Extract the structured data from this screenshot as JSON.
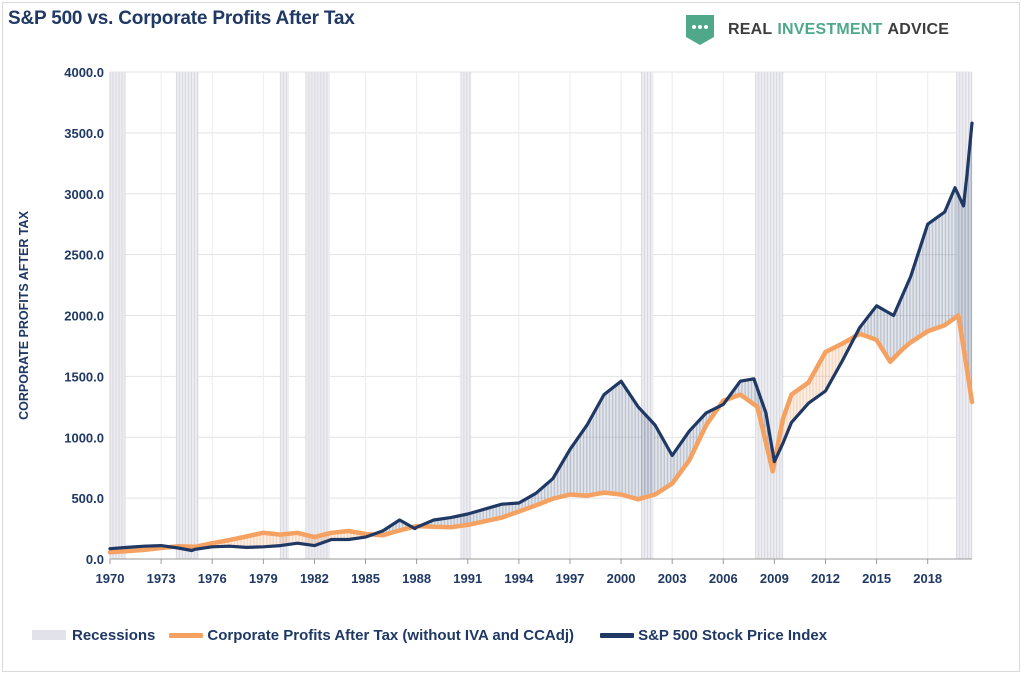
{
  "header": {
    "title": "S&P 500 vs. Corporate Profits After Tax"
  },
  "brand": {
    "word1": "REAL",
    "word2": "INVESTMENT",
    "word3": "ADVICE",
    "logo_icon": "chat-bubble-icon",
    "logo_color": "#4fa88a"
  },
  "chart_data": {
    "type": "line",
    "title": "S&P 500 vs. Corporate Profits After Tax",
    "ylabel": "CORPORATE PROFITS AFTER TAX",
    "xlabel": "",
    "ylim": [
      0,
      4000
    ],
    "xlim": [
      1970,
      2020.6
    ],
    "y_ticks": [
      "0.0",
      "500.0",
      "1000.0",
      "1500.0",
      "2000.0",
      "2500.0",
      "3000.0",
      "3500.0",
      "4000.0"
    ],
    "x_ticks": [
      "1970",
      "1973",
      "1976",
      "1979",
      "1982",
      "1985",
      "1988",
      "1991",
      "1994",
      "1997",
      "2000",
      "2003",
      "2006",
      "2009",
      "2012",
      "2015",
      "2018"
    ],
    "grid": true,
    "legend_position": "bottom",
    "recessions": [
      [
        1970.0,
        1970.9
      ],
      [
        1973.9,
        1975.2
      ],
      [
        1980.0,
        1980.5
      ],
      [
        1981.5,
        1982.9
      ],
      [
        1990.6,
        1991.2
      ],
      [
        2001.2,
        2001.9
      ],
      [
        2007.9,
        2009.5
      ],
      [
        2019.7,
        2020.6
      ]
    ],
    "fill_between": true,
    "series": [
      {
        "name": "Corporate Profits After Tax (without IVA and CCAdj)",
        "color": "#f4a161",
        "points": [
          [
            1970,
            55
          ],
          [
            1971,
            65
          ],
          [
            1972,
            75
          ],
          [
            1973,
            90
          ],
          [
            1974,
            105
          ],
          [
            1975,
            100
          ],
          [
            1976,
            130
          ],
          [
            1977,
            155
          ],
          [
            1978,
            185
          ],
          [
            1979,
            215
          ],
          [
            1980,
            200
          ],
          [
            1981,
            215
          ],
          [
            1982,
            180
          ],
          [
            1983,
            215
          ],
          [
            1984,
            230
          ],
          [
            1985,
            205
          ],
          [
            1986,
            195
          ],
          [
            1987,
            235
          ],
          [
            1988,
            270
          ],
          [
            1989,
            265
          ],
          [
            1990,
            260
          ],
          [
            1991,
            280
          ],
          [
            1992,
            310
          ],
          [
            1993,
            340
          ],
          [
            1994,
            390
          ],
          [
            1995,
            440
          ],
          [
            1996,
            495
          ],
          [
            1997,
            530
          ],
          [
            1998,
            520
          ],
          [
            1999,
            545
          ],
          [
            2000,
            530
          ],
          [
            2001,
            490
          ],
          [
            2002,
            530
          ],
          [
            2003,
            620
          ],
          [
            2004,
            810
          ],
          [
            2005,
            1100
          ],
          [
            2006,
            1300
          ],
          [
            2007,
            1350
          ],
          [
            2008,
            1250
          ],
          [
            2008.9,
            720
          ],
          [
            2009.5,
            1150
          ],
          [
            2010,
            1350
          ],
          [
            2011,
            1450
          ],
          [
            2012,
            1700
          ],
          [
            2013,
            1770
          ],
          [
            2014,
            1850
          ],
          [
            2015,
            1800
          ],
          [
            2015.8,
            1620
          ],
          [
            2016.5,
            1720
          ],
          [
            2017,
            1780
          ],
          [
            2018,
            1870
          ],
          [
            2019,
            1920
          ],
          [
            2019.8,
            2000
          ],
          [
            2020.2,
            1650
          ],
          [
            2020.6,
            1290
          ]
        ]
      },
      {
        "name": "S&P 500 Stock Price Index",
        "color": "#1f3864",
        "points": [
          [
            1970,
            85
          ],
          [
            1971,
            95
          ],
          [
            1972,
            105
          ],
          [
            1973,
            110
          ],
          [
            1974,
            90
          ],
          [
            1974.8,
            70
          ],
          [
            1975,
            80
          ],
          [
            1976,
            100
          ],
          [
            1977,
            105
          ],
          [
            1978,
            95
          ],
          [
            1979,
            100
          ],
          [
            1980,
            110
          ],
          [
            1981,
            130
          ],
          [
            1982,
            110
          ],
          [
            1983,
            160
          ],
          [
            1984,
            160
          ],
          [
            1985,
            180
          ],
          [
            1986,
            230
          ],
          [
            1987,
            320
          ],
          [
            1987.9,
            250
          ],
          [
            1988,
            260
          ],
          [
            1989,
            320
          ],
          [
            1990,
            340
          ],
          [
            1991,
            370
          ],
          [
            1992,
            410
          ],
          [
            1993,
            450
          ],
          [
            1994,
            460
          ],
          [
            1995,
            540
          ],
          [
            1996,
            660
          ],
          [
            1997,
            900
          ],
          [
            1998,
            1100
          ],
          [
            1999,
            1350
          ],
          [
            2000,
            1460
          ],
          [
            2001,
            1250
          ],
          [
            2002,
            1100
          ],
          [
            2003,
            850
          ],
          [
            2004,
            1050
          ],
          [
            2005,
            1200
          ],
          [
            2006,
            1270
          ],
          [
            2007,
            1460
          ],
          [
            2007.8,
            1480
          ],
          [
            2008.5,
            1200
          ],
          [
            2009,
            800
          ],
          [
            2009.5,
            950
          ],
          [
            2010,
            1120
          ],
          [
            2011,
            1280
          ],
          [
            2012,
            1380
          ],
          [
            2013,
            1630
          ],
          [
            2014,
            1900
          ],
          [
            2015,
            2080
          ],
          [
            2016,
            2000
          ],
          [
            2017,
            2320
          ],
          [
            2018,
            2750
          ],
          [
            2018.5,
            2800
          ],
          [
            2019,
            2850
          ],
          [
            2019.6,
            3050
          ],
          [
            2020.1,
            2900
          ],
          [
            2020.3,
            3150
          ],
          [
            2020.6,
            3580
          ]
        ]
      }
    ]
  },
  "legend": {
    "recessions_label": "Recessions",
    "profits_label": "Corporate Profits After Tax (without IVA and CCAdj)",
    "sp500_label": "S&P 500 Stock Price Index"
  }
}
